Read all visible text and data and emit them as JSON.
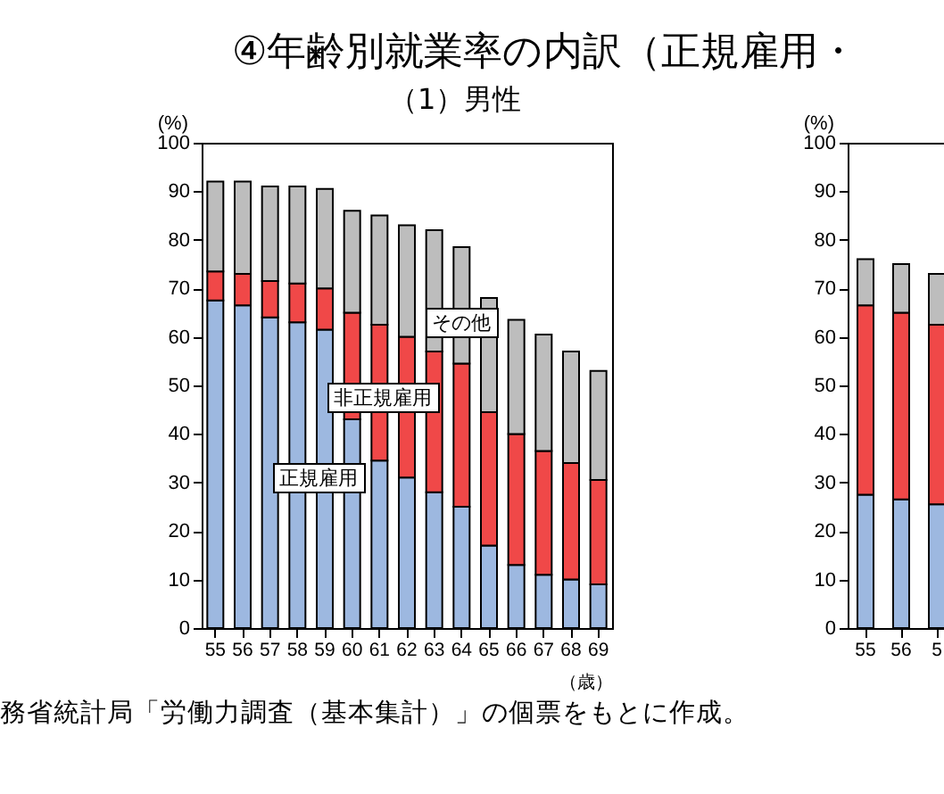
{
  "chart_data": [
    {
      "type": "bar",
      "title": "④年齢別就業率の内訳（正規雇用・",
      "subtitle": "（1）男性",
      "ylabel": "(%)",
      "xlabel": "（歳）",
      "stacked": true,
      "categories": [
        "55",
        "56",
        "57",
        "58",
        "59",
        "60",
        "61",
        "62",
        "63",
        "64",
        "65",
        "66",
        "67",
        "68",
        "69"
      ],
      "series": [
        {
          "name": "正規雇用",
          "color": "#9db8e0",
          "values": [
            67.5,
            66.5,
            64,
            63,
            61.5,
            43,
            34.5,
            31,
            28,
            25,
            17,
            13,
            11,
            10,
            9
          ]
        },
        {
          "name": "非正規雇用",
          "color": "#f04848",
          "values": [
            6,
            6.5,
            7.5,
            8,
            8.5,
            22,
            28,
            29,
            29,
            29.5,
            27.5,
            27,
            25.5,
            24,
            21.5
          ]
        },
        {
          "name": "その他",
          "color": "#bdbdbd",
          "values": [
            18.5,
            19,
            19.5,
            20,
            20.5,
            21,
            22.5,
            23,
            25,
            24,
            23.5,
            23.5,
            24,
            23,
            22.5
          ]
        }
      ],
      "ylim": [
        0,
        100
      ],
      "yticks": [
        0,
        10,
        20,
        30,
        40,
        50,
        60,
        70,
        80,
        90,
        100
      ],
      "annotations": [
        "務省統計局「労働力調査（基本集計）」の個票をもとに作成。"
      ]
    },
    {
      "type": "bar",
      "ylabel": "(%)",
      "stacked": true,
      "categories": [
        "55",
        "56",
        "5"
      ],
      "series": [
        {
          "color": "#9db8e0",
          "values": [
            27.5,
            26.5,
            25.5
          ]
        },
        {
          "color": "#f04848",
          "values": [
            39,
            38.5,
            37
          ]
        },
        {
          "color": "#bdbdbd",
          "values": [
            9.5,
            10,
            10.5
          ]
        }
      ],
      "ylim": [
        0,
        100
      ],
      "yticks": [
        0,
        10,
        20,
        30,
        40,
        50,
        60,
        70,
        80,
        90,
        100
      ]
    }
  ]
}
